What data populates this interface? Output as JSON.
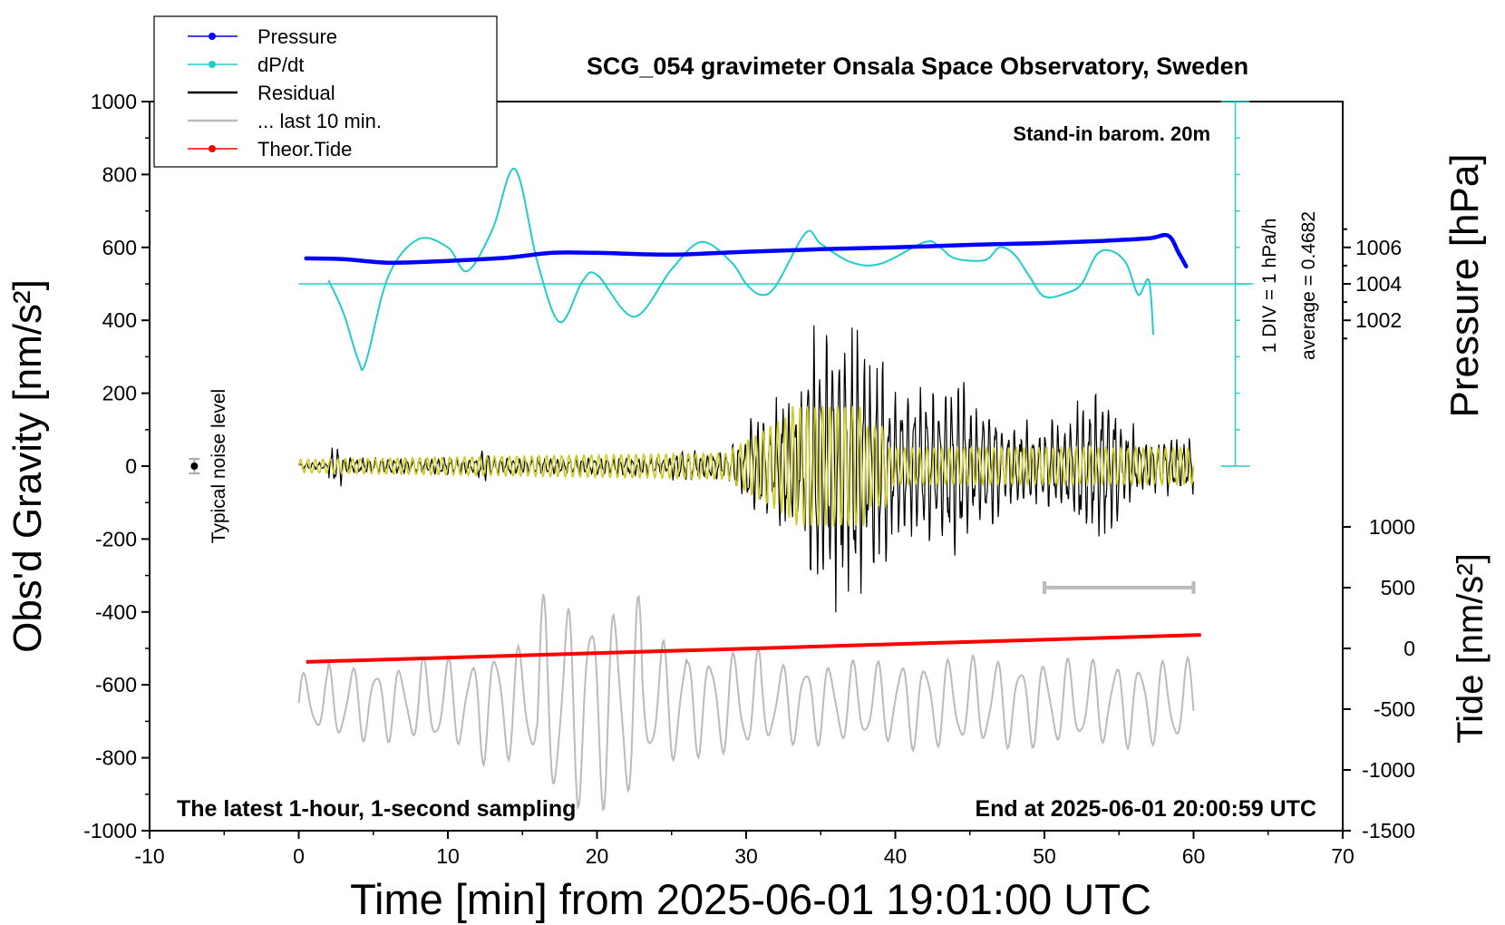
{
  "chart_data": {
    "type": "line",
    "title": "SCG_054 gravimeter Onsala Space Observatory, Sweden",
    "xlabel": "Time [min] from 2025-06-01 19:01:00 UTC",
    "ylabel_left": "Obs'd Gravity [nm/s²]",
    "ylabel_right_top": "Pressure [hPa]",
    "ylabel_right_bottom": "Tide [nm/s²]",
    "xlim": [
      -10,
      70
    ],
    "ylim": [
      -1000,
      1000
    ],
    "x_ticks": [
      "-10",
      "0",
      "10",
      "20",
      "30",
      "40",
      "50",
      "60",
      "70"
    ],
    "y_ticks": [
      "1000",
      "800",
      "600",
      "400",
      "200",
      "0",
      "-200",
      "-400",
      "-600",
      "-800",
      "-1000"
    ],
    "pressure_ticks": [
      "1006",
      "1004",
      "1002"
    ],
    "tide_ticks": [
      "1000",
      "500",
      "0",
      "-500",
      "-1000",
      "-1500"
    ],
    "annotations": {
      "station": "Stand-in barom. 20m",
      "scale": "1 DIV = 1 hPa/h",
      "average": "average = 0.4682",
      "noise": "Typical noise level",
      "bottom_left": "The latest 1-hour, 1-second sampling",
      "bottom_right": "End at 2025-06-01 20:00:59 UTC"
    },
    "legend": {
      "placement": "top-left",
      "entries": [
        {
          "name": "Pressure",
          "color": "#0000ff",
          "marker": true
        },
        {
          "name": "dP/dt",
          "color": "#22cccc",
          "marker": true
        },
        {
          "name": "Residual",
          "color": "#000000",
          "marker": false
        },
        {
          "name": "... last 10 min.",
          "color": "#bbbbbb",
          "marker": false
        },
        {
          "name": "Theor.Tide",
          "color": "#ff0000",
          "marker": true
        }
      ]
    },
    "series": [
      {
        "name": "Pressure",
        "color": "#0000ff",
        "x": [
          0.5,
          3,
          6,
          10,
          14,
          17,
          20,
          25,
          30,
          35,
          40,
          45,
          50,
          54,
          57,
          58.3,
          59,
          59.5
        ],
        "y": [
          570,
          568,
          558,
          563,
          572,
          585,
          585,
          580,
          588,
          595,
          600,
          607,
          612,
          618,
          625,
          632,
          585,
          548
        ]
      },
      {
        "name": "dP/dt",
        "color": "#22cccc",
        "x": [
          2,
          3,
          4,
          4.5,
          6,
          8,
          10,
          11.3,
          13,
          14.5,
          16,
          17.5,
          19,
          20,
          22.5,
          25,
          27,
          29,
          30,
          31,
          32,
          34,
          35,
          37,
          39,
          42,
          43,
          44,
          46,
          47,
          48,
          49,
          50,
          51.5,
          52.5,
          53.5,
          54.5,
          55.5,
          56.3,
          57,
          57.3
        ],
        "y": [
          510,
          420,
          290,
          285,
          520,
          622,
          600,
          535,
          650,
          815,
          560,
          395,
          505,
          525,
          410,
          540,
          615,
          560,
          500,
          470,
          495,
          640,
          610,
          560,
          555,
          615,
          600,
          570,
          565,
          600,
          580,
          520,
          465,
          475,
          500,
          580,
          590,
          555,
          470,
          510,
          360
        ]
      },
      {
        "name": "Theor.Tide",
        "color": "#ff0000",
        "x": [
          0.5,
          60.5
        ],
        "y": [
          -537,
          -463
        ]
      }
    ],
    "errorbar": {
      "x": -7,
      "y": 0,
      "err": 20
    },
    "window_marker": {
      "x": [
        50,
        60
      ],
      "y": -333
    },
    "dpdt_baseline": 500,
    "dpdt_axis_x": 62.8
  }
}
